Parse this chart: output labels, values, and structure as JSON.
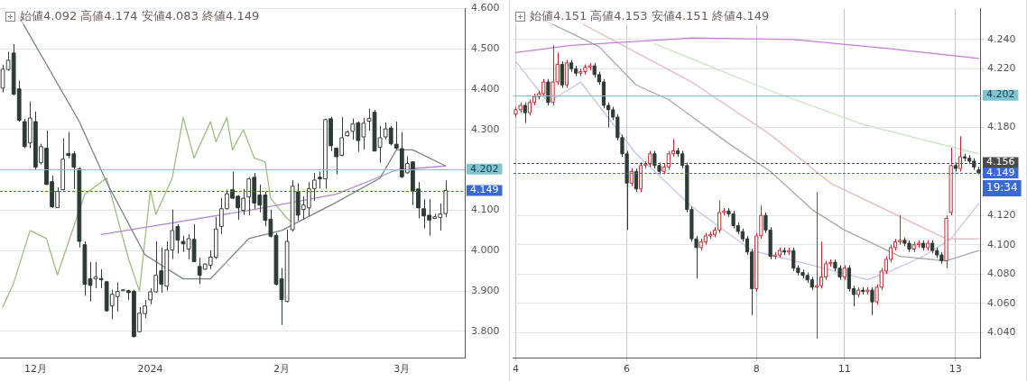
{
  "chart_data": [
    {
      "type": "candlestick",
      "title": "始値4.092 高値4.174 安値4.083 終値4.149",
      "categories": [
        null,
        null,
        null,
        null,
        null,
        null,
        "12月",
        null,
        null,
        null,
        null,
        null,
        null,
        null,
        null,
        null,
        null,
        null,
        null,
        null,
        null,
        null,
        null,
        null,
        null,
        null,
        null,
        "2024",
        null,
        null,
        null,
        null,
        null,
        null,
        null,
        null,
        null,
        null,
        null,
        null,
        null,
        null,
        null,
        null,
        null,
        null,
        null,
        null,
        null,
        null,
        null,
        "2月",
        null,
        null,
        null,
        null,
        null,
        null,
        null,
        null,
        null,
        null,
        null,
        null,
        null,
        null,
        null,
        null,
        null,
        null,
        null,
        null,
        null,
        "3月",
        null,
        null,
        null,
        null,
        null,
        null,
        null,
        null,
        null,
        null,
        null
      ],
      "ohlc": [
        [
          4.403,
          4.461,
          4.392,
          4.45
        ],
        [
          4.449,
          4.493,
          4.446,
          4.472
        ],
        [
          4.49,
          4.512,
          4.385,
          4.388
        ],
        [
          4.401,
          4.421,
          4.32,
          4.323
        ],
        [
          4.32,
          4.327,
          4.254,
          4.258
        ],
        [
          4.267,
          4.37,
          4.254,
          4.329
        ],
        [
          4.32,
          4.345,
          4.2,
          4.207
        ],
        [
          4.218,
          4.265,
          4.214,
          4.258
        ],
        [
          4.254,
          4.298,
          4.164,
          4.164
        ],
        [
          4.171,
          4.186,
          4.106,
          4.109
        ],
        [
          4.107,
          4.157,
          4.106,
          4.147
        ],
        [
          4.151,
          4.278,
          4.149,
          4.227
        ],
        [
          4.241,
          4.294,
          4.229,
          4.236
        ],
        [
          4.24,
          4.247,
          4.153,
          4.207
        ],
        [
          4.203,
          4.207,
          4.008,
          4.023
        ],
        [
          4.015,
          4.023,
          3.888,
          3.917
        ],
        [
          3.93,
          3.972,
          3.874,
          3.914
        ],
        [
          3.93,
          3.972,
          3.907,
          3.935
        ],
        [
          3.931,
          3.954,
          3.907,
          3.928
        ],
        [
          3.923,
          3.925,
          3.849,
          3.851
        ],
        [
          3.863,
          3.903,
          3.83,
          3.892
        ],
        [
          3.886,
          3.921,
          3.849,
          3.899
        ],
        [
          3.903,
          3.905,
          3.901,
          3.903
        ],
        [
          3.901,
          3.903,
          3.878,
          3.896
        ],
        [
          3.899,
          3.903,
          3.785,
          3.787
        ],
        [
          3.799,
          3.86,
          3.798,
          3.845
        ],
        [
          3.844,
          3.878,
          3.833,
          3.863
        ],
        [
          3.878,
          3.907,
          3.867,
          3.898
        ],
        [
          3.898,
          4.023,
          3.896,
          3.939
        ],
        [
          3.95,
          4.008,
          3.896,
          3.917
        ],
        [
          3.912,
          4.023,
          3.901,
          4.002
        ],
        [
          4.002,
          4.102,
          3.979,
          4.05
        ],
        [
          4.06,
          4.066,
          3.993,
          4.026
        ],
        [
          4.023,
          4.037,
          3.997,
          4.017
        ],
        [
          4.004,
          4.041,
          3.979,
          4.03
        ],
        [
          4.028,
          4.066,
          3.972,
          3.973
        ],
        [
          3.961,
          3.983,
          3.917,
          3.939
        ],
        [
          3.954,
          3.968,
          3.953,
          3.967
        ],
        [
          3.964,
          4.001,
          3.954,
          3.984
        ],
        [
          3.984,
          4.084,
          3.979,
          4.054
        ],
        [
          4.06,
          4.131,
          4.041,
          4.104
        ],
        [
          4.104,
          4.151,
          4.102,
          4.141
        ],
        [
          4.151,
          4.196,
          4.128,
          4.13
        ],
        [
          4.135,
          4.138,
          4.077,
          4.106
        ],
        [
          4.1,
          4.153,
          4.089,
          4.13
        ],
        [
          4.133,
          4.182,
          4.088,
          4.178
        ],
        [
          4.182,
          4.193,
          4.104,
          4.118
        ],
        [
          4.138,
          4.164,
          4.095,
          4.113
        ],
        [
          4.138,
          4.146,
          4.06,
          4.075
        ],
        [
          4.078,
          4.102,
          4.033,
          4.036
        ],
        [
          4.038,
          4.044,
          3.914,
          3.917
        ],
        [
          3.93,
          3.957,
          3.816,
          3.879
        ],
        [
          3.874,
          4.052,
          3.872,
          4.023
        ],
        [
          4.052,
          4.175,
          4.048,
          4.16
        ],
        [
          4.146,
          4.167,
          4.075,
          4.088
        ],
        [
          4.102,
          4.135,
          4.077,
          4.113
        ],
        [
          4.106,
          4.17,
          4.086,
          4.154
        ],
        [
          4.154,
          4.193,
          4.124,
          4.175
        ],
        [
          4.182,
          4.196,
          4.154,
          4.178
        ],
        [
          4.178,
          4.327,
          4.153,
          4.325
        ],
        [
          4.327,
          4.332,
          4.247,
          4.26
        ],
        [
          4.254,
          4.256,
          4.189,
          4.233
        ],
        [
          4.236,
          4.331,
          4.234,
          4.28
        ],
        [
          4.285,
          4.298,
          4.283,
          4.294
        ],
        [
          4.296,
          4.328,
          4.275,
          4.314
        ],
        [
          4.317,
          4.32,
          4.245,
          4.273
        ],
        [
          4.282,
          4.329,
          4.251,
          4.316
        ],
        [
          4.321,
          4.352,
          4.298,
          4.328
        ],
        [
          4.343,
          4.349,
          4.246,
          4.247
        ],
        [
          4.256,
          4.309,
          4.218,
          4.28
        ],
        [
          4.282,
          4.318,
          4.276,
          4.302
        ],
        [
          4.304,
          4.309,
          4.261,
          4.265
        ],
        [
          4.264,
          4.32,
          4.251,
          4.254
        ],
        [
          4.253,
          4.294,
          4.18,
          4.183
        ],
        [
          4.193,
          4.234,
          4.191,
          4.216
        ],
        [
          4.22,
          4.222,
          4.113,
          4.147
        ],
        [
          4.153,
          4.17,
          4.08,
          4.106
        ],
        [
          4.104,
          4.128,
          4.055,
          4.086
        ],
        [
          4.088,
          4.128,
          4.037,
          4.076
        ],
        [
          4.08,
          4.091,
          4.079,
          4.084
        ],
        [
          4.082,
          4.117,
          4.05,
          4.091
        ],
        [
          4.092,
          4.174,
          4.083,
          4.149
        ],
        null,
        null,
        null
      ],
      "series": [
        {
          "type": "line",
          "color": "#7a8580",
          "values": [
            null,
            null,
            null,
            4.58,
            null,
            null,
            null,
            null,
            null,
            null,
            null,
            null,
            null,
            null,
            4.32,
            null,
            null,
            null,
            null,
            4.17,
            null,
            null,
            null,
            null,
            null,
            null,
            3.99,
            null,
            null,
            null,
            null,
            null,
            null,
            3.93,
            null,
            null,
            null,
            null,
            3.93,
            null,
            null,
            null,
            null,
            null,
            null,
            4.03,
            null,
            null,
            null,
            null,
            null,
            4.05,
            null,
            null,
            null,
            null,
            null,
            null,
            null,
            null,
            null,
            4.12,
            null,
            null,
            null,
            null,
            null,
            null,
            null,
            4.18,
            null,
            null,
            4.25,
            null,
            null,
            4.25,
            null,
            null,
            null,
            null,
            null,
            4.21,
            null,
            null,
            null
          ]
        },
        {
          "type": "line",
          "color": "#b58ad6",
          "values": [
            null,
            null,
            null,
            null,
            null,
            null,
            null,
            null,
            null,
            null,
            null,
            null,
            null,
            null,
            null,
            null,
            null,
            null,
            4.04,
            null,
            null,
            null,
            null,
            null,
            null,
            null,
            null,
            null,
            null,
            null,
            null,
            null,
            null,
            null,
            null,
            null,
            null,
            null,
            null,
            null,
            null,
            null,
            null,
            null,
            null,
            4.1,
            null,
            null,
            null,
            null,
            null,
            null,
            null,
            null,
            null,
            null,
            null,
            null,
            null,
            null,
            null,
            4.14,
            null,
            null,
            null,
            null,
            null,
            null,
            null,
            null,
            null,
            null,
            4.2,
            null,
            null,
            null,
            null,
            null,
            null,
            null,
            null,
            4.21,
            null,
            null,
            null
          ]
        },
        {
          "type": "line",
          "color": "#9dbf7e",
          "values": [
            3.86,
            null,
            3.92,
            null,
            null,
            4.05,
            null,
            null,
            4.03,
            null,
            3.94,
            null,
            null,
            null,
            null,
            4.14,
            null,
            null,
            null,
            4.18,
            null,
            null,
            null,
            3.98,
            null,
            3.9,
            null,
            4.15,
            4.09,
            null,
            null,
            4.18,
            null,
            4.33,
            null,
            4.23,
            null,
            null,
            4.32,
            4.27,
            null,
            4.33,
            4.25,
            null,
            4.3,
            null,
            4.23,
            null,
            4.22,
            4.13,
            null,
            null,
            4.08,
            4.07,
            null,
            null,
            null,
            null,
            null,
            null,
            null,
            null,
            null,
            null,
            null,
            null,
            null,
            null,
            null,
            null,
            null,
            null,
            null,
            null,
            null,
            null,
            null,
            null,
            null,
            null,
            null,
            null,
            null,
            null,
            null
          ]
        }
      ],
      "ylim": [
        3.735,
        4.6
      ],
      "yticks": [
        {
          "value": 3.8,
          "label": "3.800"
        },
        {
          "value": 3.9,
          "label": "3.900"
        },
        {
          "value": 4.0,
          "label": "4.000"
        },
        {
          "value": 4.1,
          "label": "4.100"
        },
        {
          "value": 4.3,
          "label": "4.300"
        },
        {
          "value": 4.4,
          "label": "4.400"
        },
        {
          "value": 4.5,
          "label": "4.500"
        },
        {
          "value": 4.6,
          "label": "4.600"
        }
      ],
      "ref_lines": [
        {
          "axis": "y",
          "value": 4.202,
          "label": "4.202",
          "color": "#7fc4d0",
          "line_style": "solid"
        },
        {
          "axis": "y",
          "value": 4.149,
          "label": "4.149",
          "color": "#3a68d6",
          "line_style": "dashed"
        }
      ],
      "grid": "y"
    },
    {
      "type": "candlestick",
      "title": "始値4.151 高値4.153 安値4.151 終値4.149",
      "categories": [
        "4",
        null,
        null,
        null,
        null,
        null,
        null,
        null,
        null,
        null,
        null,
        null,
        null,
        null,
        null,
        null,
        null,
        null,
        null,
        null,
        null,
        null,
        null,
        null,
        "6",
        null,
        null,
        null,
        null,
        null,
        null,
        null,
        null,
        null,
        null,
        null,
        null,
        null,
        null,
        null,
        null,
        null,
        null,
        null,
        null,
        null,
        null,
        null,
        null,
        null,
        null,
        null,
        "8",
        null,
        null,
        null,
        null,
        null,
        null,
        null,
        null,
        null,
        null,
        null,
        null,
        null,
        null,
        null,
        null,
        null,
        null,
        "11",
        null,
        null,
        null,
        null,
        null,
        null,
        null,
        null,
        null,
        null,
        null,
        null,
        null,
        null,
        null,
        null,
        null,
        null,
        null,
        null,
        null,
        null,
        null,
        "13",
        null,
        null,
        null,
        null,
        null
      ],
      "ohlc": [
        [
          4.189,
          4.194,
          4.187,
          4.192
        ],
        [
          4.192,
          4.197,
          4.19,
          4.195
        ],
        [
          4.195,
          4.197,
          4.183,
          4.19
        ],
        [
          4.19,
          4.199,
          4.188,
          4.197
        ],
        [
          4.197,
          4.203,
          4.195,
          4.201
        ],
        [
          4.201,
          4.205,
          4.199,
          4.203
        ],
        [
          4.203,
          4.213,
          4.201,
          4.211
        ],
        [
          4.211,
          4.213,
          4.195,
          4.197
        ],
        [
          4.197,
          4.236,
          4.195,
          4.211
        ],
        [
          4.211,
          4.231,
          4.209,
          4.223
        ],
        [
          4.223,
          4.225,
          4.207,
          4.209
        ],
        [
          4.209,
          4.226,
          4.207,
          4.224
        ],
        [
          4.224,
          4.226,
          4.218,
          4.22
        ],
        [
          4.22,
          4.222,
          4.215,
          4.217
        ],
        [
          4.217,
          4.22,
          4.215,
          4.218
        ],
        [
          4.218,
          4.223,
          4.216,
          4.221
        ],
        [
          4.221,
          4.224,
          4.219,
          4.222
        ],
        [
          4.222,
          4.224,
          4.214,
          4.216
        ],
        [
          4.216,
          4.218,
          4.209,
          4.211
        ],
        [
          4.211,
          4.213,
          4.193,
          4.195
        ],
        [
          4.195,
          4.197,
          4.18,
          4.192
        ],
        [
          4.192,
          4.194,
          4.185,
          4.187
        ],
        [
          4.187,
          4.189,
          4.171,
          4.173
        ],
        [
          4.173,
          4.175,
          4.16,
          4.162
        ],
        [
          4.162,
          4.164,
          4.11,
          4.142
        ],
        [
          4.142,
          4.152,
          4.14,
          4.15
        ],
        [
          4.15,
          4.152,
          4.136,
          4.138
        ],
        [
          4.138,
          4.156,
          4.136,
          4.154
        ],
        [
          4.154,
          4.157,
          4.152,
          4.155
        ],
        [
          4.155,
          4.164,
          4.153,
          4.162
        ],
        [
          4.162,
          4.164,
          4.152,
          4.154
        ],
        [
          4.154,
          4.156,
          4.148,
          4.15
        ],
        [
          4.15,
          4.155,
          4.148,
          4.153
        ],
        [
          4.153,
          4.164,
          4.151,
          4.162
        ],
        [
          4.162,
          4.172,
          4.16,
          4.164
        ],
        [
          4.164,
          4.166,
          4.16,
          4.162
        ],
        [
          4.162,
          4.164,
          4.152,
          4.154
        ],
        [
          4.154,
          4.156,
          4.122,
          4.124
        ],
        [
          4.124,
          4.126,
          4.102,
          4.104
        ],
        [
          4.104,
          4.106,
          4.077,
          4.098
        ],
        [
          4.098,
          4.104,
          4.096,
          4.102
        ],
        [
          4.102,
          4.108,
          4.1,
          4.106
        ],
        [
          4.106,
          4.109,
          4.104,
          4.107
        ],
        [
          4.107,
          4.112,
          4.105,
          4.11
        ],
        [
          4.11,
          4.13,
          4.108,
          4.122
        ],
        [
          4.122,
          4.125,
          4.12,
          4.123
        ],
        [
          4.123,
          4.125,
          4.119,
          4.121
        ],
        [
          4.121,
          4.123,
          4.111,
          4.113
        ],
        [
          4.113,
          4.115,
          4.107,
          4.109
        ],
        [
          4.109,
          4.111,
          4.102,
          4.104
        ],
        [
          4.104,
          4.106,
          4.093,
          4.095
        ],
        [
          4.095,
          4.097,
          4.052,
          4.07
        ],
        [
          4.07,
          4.108,
          4.068,
          4.106
        ],
        [
          4.106,
          4.127,
          4.104,
          4.12
        ],
        [
          4.12,
          4.122,
          4.108,
          4.11
        ],
        [
          4.11,
          4.112,
          4.09,
          4.092
        ],
        [
          4.092,
          4.095,
          4.09,
          4.093
        ],
        [
          4.093,
          4.098,
          4.091,
          4.096
        ],
        [
          4.096,
          4.098,
          4.093,
          4.095
        ],
        [
          4.095,
          4.098,
          4.093,
          4.096
        ],
        [
          4.096,
          4.098,
          4.082,
          4.084
        ],
        [
          4.084,
          4.086,
          4.079,
          4.081
        ],
        [
          4.081,
          4.083,
          4.077,
          4.079
        ],
        [
          4.079,
          4.081,
          4.074,
          4.076
        ],
        [
          4.076,
          4.078,
          4.069,
          4.071
        ],
        [
          4.071,
          4.136,
          4.036,
          4.072
        ],
        [
          4.072,
          4.102,
          4.07,
          4.078
        ],
        [
          4.078,
          4.089,
          4.076,
          4.087
        ],
        [
          4.087,
          4.09,
          4.085,
          4.088
        ],
        [
          4.088,
          4.09,
          4.082,
          4.084
        ],
        [
          4.084,
          4.086,
          4.076,
          4.078
        ],
        [
          4.078,
          4.086,
          4.076,
          4.084
        ],
        [
          4.084,
          4.086,
          4.068,
          4.07
        ],
        [
          4.07,
          4.072,
          4.058,
          4.066
        ],
        [
          4.066,
          4.071,
          4.064,
          4.069
        ],
        [
          4.069,
          4.071,
          4.066,
          4.068
        ],
        [
          4.068,
          4.071,
          4.066,
          4.069
        ],
        [
          4.069,
          4.071,
          4.052,
          4.061
        ],
        [
          4.061,
          4.073,
          4.059,
          4.071
        ],
        [
          4.071,
          4.084,
          4.069,
          4.082
        ],
        [
          4.082,
          4.092,
          4.08,
          4.09
        ],
        [
          4.09,
          4.1,
          4.088,
          4.098
        ],
        [
          4.098,
          4.104,
          4.096,
          4.102
        ],
        [
          4.102,
          4.12,
          4.1,
          4.103
        ],
        [
          4.103,
          4.105,
          4.099,
          4.101
        ],
        [
          4.101,
          4.103,
          4.095,
          4.097
        ],
        [
          4.097,
          4.102,
          4.095,
          4.1
        ],
        [
          4.1,
          4.103,
          4.098,
          4.101
        ],
        [
          4.101,
          4.103,
          4.096,
          4.098
        ],
        [
          4.098,
          4.103,
          4.096,
          4.101
        ],
        [
          4.101,
          4.103,
          4.094,
          4.096
        ],
        [
          4.096,
          4.098,
          4.091,
          4.093
        ],
        [
          4.093,
          4.095,
          4.087,
          4.089
        ],
        [
          4.089,
          4.12,
          4.084,
          4.118
        ],
        [
          4.122,
          4.166,
          4.12,
          4.154
        ],
        [
          4.154,
          4.156,
          4.15,
          4.152
        ],
        [
          4.152,
          4.174,
          4.15,
          4.16
        ],
        [
          4.16,
          4.162,
          4.157,
          4.159
        ],
        [
          4.159,
          4.161,
          4.155,
          4.157
        ],
        [
          4.157,
          4.159,
          4.151,
          4.153
        ],
        [
          4.151,
          4.153,
          4.148,
          4.149
        ]
      ],
      "series": [
        {
          "type": "line",
          "color": "#c77dd6",
          "values": [
            4.231,
            null,
            null,
            null,
            null,
            null,
            null,
            null,
            null,
            null,
            null,
            null,
            4.236,
            null,
            null,
            null,
            null,
            null,
            null,
            null,
            null,
            null,
            null,
            null,
            null,
            null,
            null,
            null,
            null,
            null,
            null,
            null,
            null,
            null,
            null,
            null,
            null,
            null,
            4.241,
            null,
            null,
            null,
            null,
            null,
            null,
            null,
            null,
            null,
            null,
            null,
            null,
            null,
            null,
            null,
            null,
            null,
            null,
            null,
            null,
            null,
            4.24,
            null,
            null,
            null,
            null,
            null,
            null,
            null,
            null,
            null,
            null,
            null,
            null,
            null,
            null,
            null,
            null,
            null,
            null,
            null,
            4.234,
            null,
            null,
            null,
            null,
            null,
            null,
            null,
            null,
            null,
            null,
            null,
            null,
            null,
            null,
            null,
            null,
            null,
            null,
            null,
            4.227
          ]
        },
        {
          "type": "line",
          "color": "#a8a8a8",
          "values": [
            null,
            null,
            null,
            4.258,
            null,
            null,
            null,
            null,
            null,
            null,
            null,
            null,
            null,
            null,
            null,
            null,
            null,
            null,
            4.235,
            null,
            null,
            null,
            null,
            null,
            null,
            null,
            4.209,
            null,
            null,
            null,
            null,
            null,
            null,
            4.199,
            null,
            null,
            null,
            null,
            null,
            null,
            null,
            null,
            null,
            null,
            null,
            null,
            4.169,
            null,
            null,
            null,
            null,
            null,
            null,
            null,
            null,
            4.15,
            null,
            null,
            null,
            null,
            null,
            null,
            null,
            null,
            4.124,
            null,
            null,
            null,
            null,
            null,
            null,
            4.11,
            null,
            null,
            null,
            null,
            null,
            null,
            null,
            null,
            null,
            null,
            null,
            4.092,
            null,
            null,
            null,
            null,
            null,
            null,
            null,
            null,
            null,
            4.089,
            null,
            null,
            null,
            null,
            null,
            null,
            4.096
          ]
        },
        {
          "type": "line",
          "color": "#e5b7b7",
          "values": [
            null,
            null,
            null,
            null,
            null,
            null,
            null,
            null,
            null,
            null,
            4.258,
            null,
            null,
            null,
            null,
            null,
            null,
            null,
            null,
            null,
            null,
            null,
            null,
            null,
            null,
            null,
            null,
            null,
            null,
            null,
            null,
            null,
            null,
            null,
            null,
            null,
            null,
            null,
            4.211,
            null,
            null,
            null,
            null,
            null,
            null,
            null,
            null,
            null,
            null,
            null,
            null,
            null,
            null,
            null,
            null,
            4.175,
            null,
            null,
            null,
            null,
            null,
            null,
            null,
            null,
            null,
            null,
            null,
            null,
            4.142,
            null,
            null,
            null,
            null,
            null,
            null,
            null,
            null,
            null,
            null,
            null,
            null,
            null,
            null,
            null,
            null,
            null,
            null,
            null,
            null,
            null,
            null,
            null,
            null,
            4.104,
            null,
            null,
            null,
            null,
            null,
            null,
            4.104
          ]
        },
        {
          "type": "line",
          "color": "#c6e4be",
          "values": [
            null,
            null,
            null,
            null,
            null,
            null,
            null,
            null,
            null,
            null,
            null,
            null,
            null,
            null,
            null,
            null,
            null,
            null,
            null,
            null,
            null,
            null,
            null,
            null,
            null,
            null,
            null,
            null,
            null,
            null,
            4.237,
            null,
            null,
            null,
            null,
            null,
            null,
            null,
            null,
            null,
            null,
            null,
            null,
            null,
            null,
            null,
            null,
            null,
            null,
            null,
            null,
            null,
            null,
            null,
            null,
            4.205,
            null,
            null,
            null,
            null,
            null,
            null,
            null,
            null,
            null,
            null,
            null,
            null,
            null,
            null,
            null,
            null,
            null,
            null,
            null,
            4.182,
            null,
            null,
            null,
            null,
            null,
            null,
            null,
            null,
            null,
            null,
            null,
            null,
            null,
            null,
            null,
            null,
            null,
            null,
            null,
            null,
            null,
            null,
            null,
            null,
            4.162
          ]
        },
        {
          "type": "line",
          "color": "#c9c3e6",
          "values": [
            4.225,
            null,
            null,
            null,
            null,
            null,
            null,
            4.197,
            null,
            null,
            null,
            null,
            null,
            null,
            4.211,
            null,
            null,
            null,
            null,
            null,
            null,
            null,
            null,
            null,
            null,
            null,
            4.162,
            null,
            null,
            null,
            null,
            null,
            null,
            null,
            null,
            null,
            null,
            null,
            4.126,
            null,
            null,
            null,
            null,
            null,
            null,
            null,
            null,
            null,
            null,
            null,
            null,
            4.096,
            null,
            null,
            null,
            null,
            null,
            null,
            null,
            null,
            null,
            null,
            null,
            null,
            4.086,
            null,
            null,
            null,
            null,
            null,
            null,
            null,
            null,
            null,
            null,
            null,
            4.076,
            null,
            null,
            null,
            null,
            4.082,
            null,
            null,
            null,
            null,
            null,
            null,
            4.092,
            null,
            null,
            null,
            null,
            null,
            4.104,
            null,
            null,
            null,
            null,
            null,
            4.128
          ]
        }
      ],
      "ylim": [
        4.023,
        4.261
      ],
      "yticks": [
        {
          "value": 4.04,
          "label": "4.040"
        },
        {
          "value": 4.06,
          "label": "4.060"
        },
        {
          "value": 4.08,
          "label": "4.080"
        },
        {
          "value": 4.1,
          "label": "4.100"
        },
        {
          "value": 4.12,
          "label": "4.120"
        },
        {
          "value": 4.18,
          "label": "4.180"
        },
        {
          "value": 4.22,
          "label": "4.220"
        },
        {
          "value": 4.24,
          "label": "4.240"
        }
      ],
      "ref_lines": [
        {
          "axis": "y",
          "value": 4.202,
          "label": "4.202",
          "color": "#7fc4d0",
          "line_style": "solid"
        },
        {
          "axis": "y",
          "value": 4.156,
          "label": "4.156",
          "color": "#4a4a4a",
          "line_style": "dashed"
        },
        {
          "axis": "y",
          "value": 4.149,
          "label": "4.149",
          "color": "#3a68d6",
          "line_style": "dashed"
        }
      ],
      "annotations": [
        "19:34"
      ],
      "grid": true
    }
  ]
}
